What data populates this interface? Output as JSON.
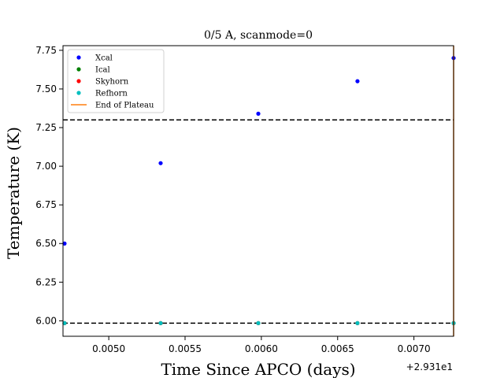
{
  "chart_data": {
    "type": "scatter",
    "title": "0/5 A, scanmode=0",
    "xlabel": "Time Since APCO (days)",
    "ylabel": "Temperature (K)",
    "x_offset_label": "+2.931e1",
    "x_offset": 29.31,
    "xlim": [
      29.3147,
      29.31726
    ],
    "ylim": [
      5.9,
      7.78
    ],
    "x_ticks": [
      {
        "value": 29.315,
        "label": "0.0050"
      },
      {
        "value": 29.3155,
        "label": "0.0055"
      },
      {
        "value": 29.316,
        "label": "0.0060"
      },
      {
        "value": 29.3165,
        "label": "0.0065"
      },
      {
        "value": 29.317,
        "label": "0.0070"
      }
    ],
    "y_ticks": [
      {
        "value": 6.0,
        "label": "6.00"
      },
      {
        "value": 6.25,
        "label": "6.25"
      },
      {
        "value": 6.5,
        "label": "6.50"
      },
      {
        "value": 6.75,
        "label": "6.75"
      },
      {
        "value": 7.0,
        "label": "7.00"
      },
      {
        "value": 7.25,
        "label": "7.25"
      },
      {
        "value": 7.5,
        "label": "7.50"
      },
      {
        "value": 7.75,
        "label": "7.75"
      }
    ],
    "series": [
      {
        "name": "Xcal",
        "color": "#0000ff",
        "marker": "dot",
        "x": [
          29.31471,
          29.31534,
          29.31598,
          29.31663,
          29.31726
        ],
        "y": [
          6.5,
          7.02,
          7.34,
          7.55,
          7.7
        ]
      },
      {
        "name": "Ical",
        "color": "#008000",
        "marker": "dot",
        "x": [
          29.31471,
          29.31534,
          29.31598,
          29.31663,
          29.31726
        ],
        "y": [
          5.985,
          5.985,
          5.985,
          5.985,
          5.985
        ]
      },
      {
        "name": "Skyhorn",
        "color": "#ff0000",
        "marker": "dot",
        "x": [
          29.31471,
          29.31534,
          29.31598,
          29.31663,
          29.31726
        ],
        "y": [
          5.985,
          5.985,
          5.985,
          5.985,
          5.985
        ]
      },
      {
        "name": "Refhorn",
        "color": "#00bfbf",
        "marker": "dot",
        "x": [
          29.31471,
          29.31534,
          29.31598,
          29.31663,
          29.31726
        ],
        "y": [
          5.985,
          5.985,
          5.985,
          5.985,
          5.985
        ]
      },
      {
        "name": "End of Plateau",
        "color": "#ff7f0e",
        "marker": "vline",
        "x": [
          29.31726
        ]
      }
    ],
    "hlines": [
      {
        "y": 7.3,
        "style": "dashed",
        "color": "#000000"
      },
      {
        "y": 5.985,
        "style": "dashed",
        "color": "#000000"
      }
    ],
    "grid": false,
    "legend_placement": "top-left"
  }
}
